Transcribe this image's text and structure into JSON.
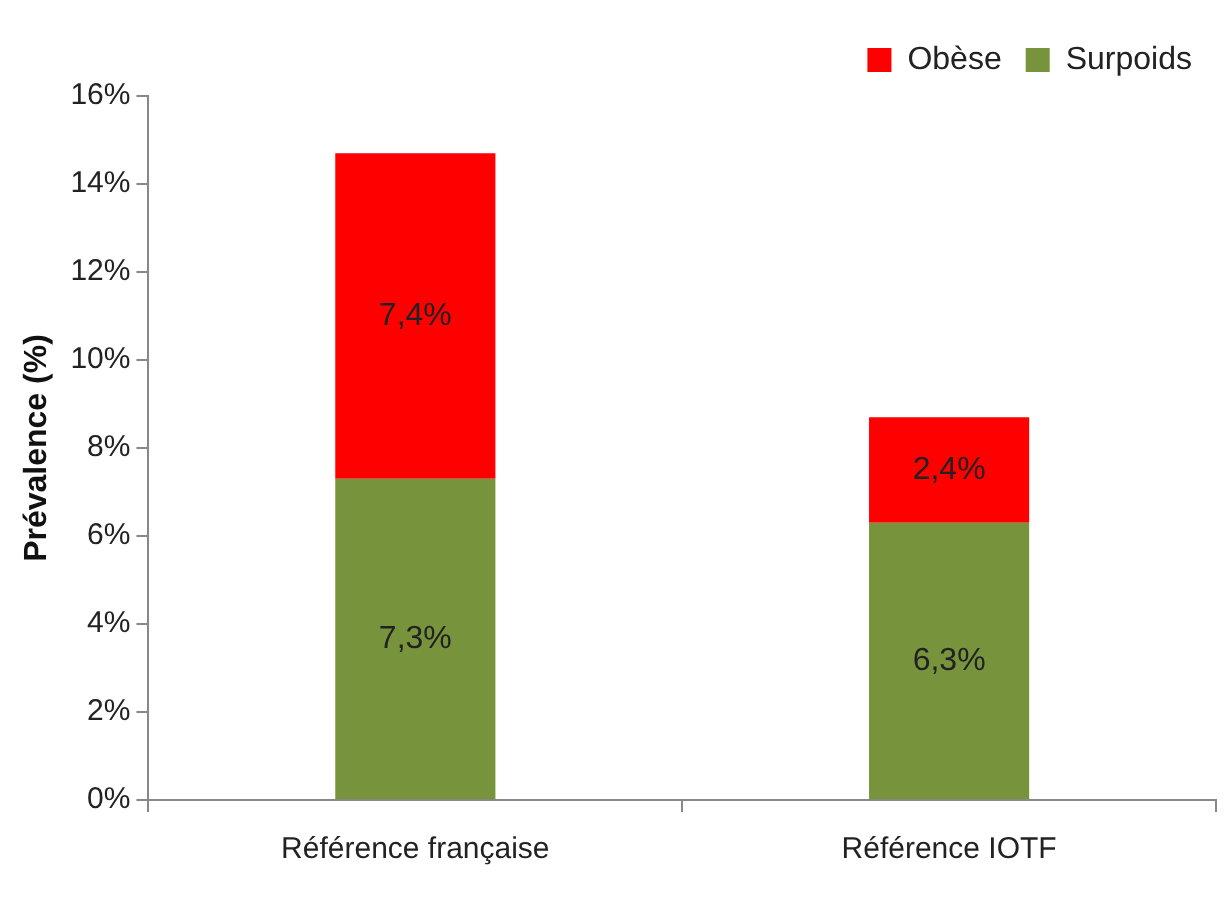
{
  "chart_data": {
    "type": "bar",
    "ylabel": "Prévalence (%)",
    "stacked": true,
    "categories": [
      "Référence française",
      "Référence IOTF"
    ],
    "series": [
      {
        "name": "Surpoids",
        "color": "#77933c",
        "values": [
          7.3,
          6.3
        ],
        "value_labels": [
          "7,3%",
          "6,3%"
        ]
      },
      {
        "name": "Obèse",
        "color": "#ff0000",
        "values": [
          7.4,
          2.4
        ],
        "value_labels": [
          "7,4%",
          "2,4%"
        ]
      }
    ],
    "ylim": [
      0,
      16
    ],
    "yticks": [
      {
        "value": 0,
        "label": "0%"
      },
      {
        "value": 2,
        "label": "2%"
      },
      {
        "value": 4,
        "label": "4%"
      },
      {
        "value": 6,
        "label": "6%"
      },
      {
        "value": 8,
        "label": "8%"
      },
      {
        "value": 10,
        "label": "10%"
      },
      {
        "value": 12,
        "label": "12%"
      },
      {
        "value": 14,
        "label": "14%"
      },
      {
        "value": 16,
        "label": "16%"
      }
    ],
    "grid": false,
    "legend": "top right"
  }
}
